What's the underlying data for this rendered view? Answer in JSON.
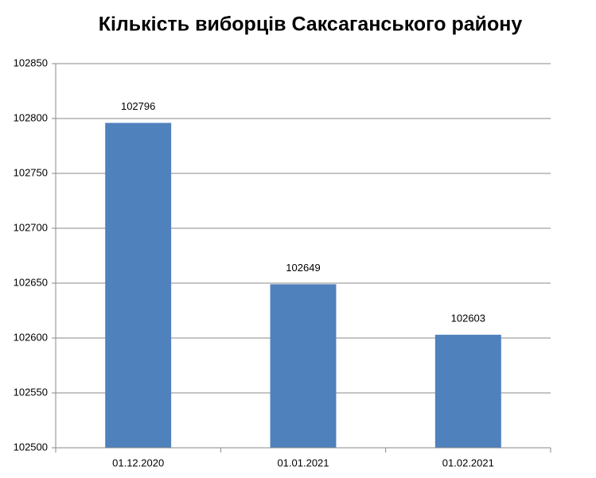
{
  "chart_data": {
    "type": "bar",
    "title": "Кількість виборців Саксаганського району",
    "categories": [
      "01.12.2020",
      "01.01.2021",
      "01.02.2021"
    ],
    "values": [
      102796,
      102649,
      102603
    ],
    "color": "#4f81bd",
    "ylim": [
      102500,
      102850
    ],
    "yticks": [
      102500,
      102550,
      102600,
      102650,
      102700,
      102750,
      102800,
      102850
    ],
    "grid": true
  }
}
